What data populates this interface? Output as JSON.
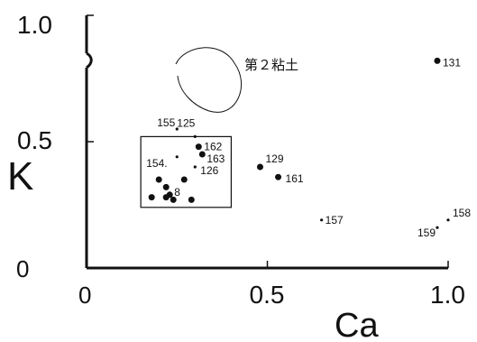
{
  "chart_data": {
    "type": "scatter",
    "title": "",
    "xlabel": "Ca",
    "ylabel": "K",
    "xlim": [
      0,
      1.0
    ],
    "ylim": [
      0,
      1.0
    ],
    "x_ticks": [
      {
        "value": 0,
        "label": "0"
      },
      {
        "value": 0.5,
        "label": "0.5"
      },
      {
        "value": 1.0,
        "label": "1.0"
      }
    ],
    "y_ticks": [
      {
        "value": 0,
        "label": "0"
      },
      {
        "value": 0.5,
        "label": "0.5"
      },
      {
        "value": 1.0,
        "label": "1.0"
      }
    ],
    "annotation_group": "第２粘土",
    "points": [
      {
        "label": "131",
        "x": 0.97,
        "y": 0.82
      },
      {
        "label": "155",
        "x": 0.25,
        "y": 0.55
      },
      {
        "label": "125",
        "x": 0.3,
        "y": 0.52
      },
      {
        "label": "162",
        "x": 0.31,
        "y": 0.48
      },
      {
        "label": "163",
        "x": 0.32,
        "y": 0.45
      },
      {
        "label": "154.",
        "x": 0.25,
        "y": 0.44
      },
      {
        "label": "126",
        "x": 0.3,
        "y": 0.4
      },
      {
        "label": "129",
        "x": 0.48,
        "y": 0.4
      },
      {
        "label": "161",
        "x": 0.53,
        "y": 0.36
      },
      {
        "label": "8",
        "x": 0.23,
        "y": 0.29
      },
      {
        "label": "157",
        "x": 0.65,
        "y": 0.19
      },
      {
        "label": "158",
        "x": 1.0,
        "y": 0.19
      },
      {
        "label": "159",
        "x": 0.97,
        "y": 0.16
      },
      {
        "label": "",
        "x": 0.2,
        "y": 0.35
      },
      {
        "label": "",
        "x": 0.22,
        "y": 0.32
      },
      {
        "label": "",
        "x": 0.22,
        "y": 0.28
      },
      {
        "label": "",
        "x": 0.24,
        "y": 0.27
      },
      {
        "label": "",
        "x": 0.29,
        "y": 0.27
      },
      {
        "label": "",
        "x": 0.18,
        "y": 0.28
      },
      {
        "label": "",
        "x": 0.27,
        "y": 0.35
      }
    ],
    "box": {
      "x1": 0.15,
      "y1": 0.24,
      "x2": 0.4,
      "y2": 0.52
    }
  }
}
